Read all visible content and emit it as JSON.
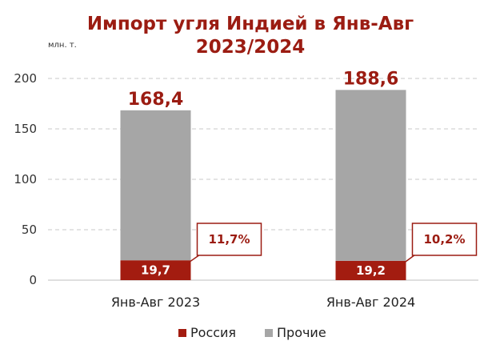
{
  "colors": {
    "accent": "#9b1c12",
    "russia": "#a31c10",
    "other": "#a6a6a6",
    "grid": "#c8c8c8",
    "axis": "#bfbfbf"
  },
  "chart_data": {
    "type": "bar",
    "stacked": true,
    "title_lines": [
      "Импорт угля Индией в Янв-Авг",
      "2023/2024"
    ],
    "unit_label": "млн. т.",
    "categories": [
      "Янв-Авг 2023",
      "Янв-Авг 2024"
    ],
    "totals": [
      168.4,
      188.6
    ],
    "total_labels": [
      "168,4",
      "188,6"
    ],
    "series": [
      {
        "name": "Россия",
        "values": [
          19.7,
          19.2
        ],
        "labels": [
          "19,7",
          "19,2"
        ]
      },
      {
        "name": "Прочие",
        "values": [
          148.7,
          169.4
        ]
      }
    ],
    "share_callouts": [
      "11,7%",
      "10,2%"
    ],
    "ylim": [
      0,
      200
    ],
    "yticks": [
      0,
      50,
      100,
      150,
      200
    ],
    "grid": true,
    "grid_style": "dashed",
    "legend_position": "bottom"
  }
}
